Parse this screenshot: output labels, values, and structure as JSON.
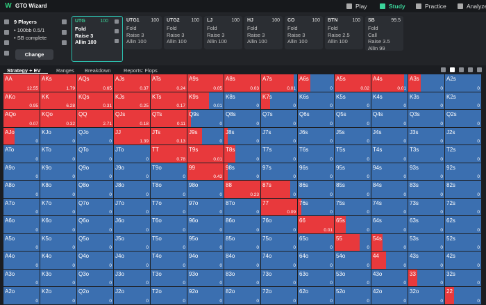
{
  "app": {
    "logo": "W",
    "title": "GTO Wizard",
    "nav": [
      "Play",
      "Study",
      "Practice",
      "Analyze"
    ]
  },
  "setup": {
    "players": "9 Players",
    "lines": [
      "• 100bb 0.5/1",
      "• SB complete"
    ],
    "button": "Change"
  },
  "positions": [
    {
      "name": "UTG",
      "stack": 100,
      "actions": [
        "Fold",
        "Raise 3",
        "Allin 100"
      ]
    },
    {
      "name": "UTG1",
      "stack": 100,
      "actions": [
        "Fold",
        "Raise 3",
        "Allin 100"
      ]
    },
    {
      "name": "UTG2",
      "stack": 100,
      "actions": [
        "Fold",
        "Raise 3",
        "Allin 100"
      ]
    },
    {
      "name": "LJ",
      "stack": 100,
      "actions": [
        "Fold",
        "Raise 3",
        "Allin 100"
      ]
    },
    {
      "name": "HJ",
      "stack": 100,
      "actions": [
        "Fold",
        "Raise 3",
        "Allin 100"
      ]
    },
    {
      "name": "CO",
      "stack": 100,
      "actions": [
        "Fold",
        "Raise 3",
        "Allin 100"
      ]
    },
    {
      "name": "BTN",
      "stack": 100,
      "actions": [
        "Fold",
        "Raise 2.5",
        "Allin 100"
      ]
    },
    {
      "name": "SB",
      "stack": 99.5,
      "actions": [
        "Fold",
        "Call",
        "Raise 3.5",
        "Allin 99"
      ]
    }
  ],
  "tabs": [
    "Strategy + EV",
    "Ranges",
    "Breakdown",
    "Reports: Flops"
  ],
  "grid": {
    "rows": [
      [
        [
          "AA",
          12.55,
          100
        ],
        [
          "AKs",
          1.79,
          100
        ],
        [
          "AQs",
          0.65,
          100
        ],
        [
          "AJs",
          0.37,
          100
        ],
        [
          "ATs",
          0.24,
          100
        ],
        [
          "A9s",
          0.05,
          100
        ],
        [
          "A8s",
          0.03,
          100
        ],
        [
          "A7s",
          0.01,
          90
        ],
        [
          "A6s",
          0,
          35
        ],
        [
          "A5s",
          0.02,
          100
        ],
        [
          "A4s",
          0.01,
          90
        ],
        [
          "A3s",
          0,
          35
        ],
        [
          "A2s",
          0,
          0
        ]
      ],
      [
        [
          "AKo",
          0.95,
          100
        ],
        [
          "KK",
          6.28,
          100
        ],
        [
          "KQs",
          0.31,
          100
        ],
        [
          "KJs",
          0.25,
          100
        ],
        [
          "KTs",
          0.17,
          100
        ],
        [
          "K9s",
          0.01,
          60
        ],
        [
          "K8s",
          0,
          0
        ],
        [
          "K7s",
          0,
          25
        ],
        [
          "K6s",
          0,
          0
        ],
        [
          "K5s",
          0,
          0
        ],
        [
          "K4s",
          0,
          0
        ],
        [
          "K3s",
          0,
          0
        ],
        [
          "K2s",
          0,
          0
        ]
      ],
      [
        [
          "AQo",
          0.07,
          100
        ],
        [
          "KQo",
          0.32,
          100
        ],
        [
          "QQ",
          2.71,
          100
        ],
        [
          "QJs",
          0.18,
          100
        ],
        [
          "QTs",
          0.11,
          100
        ],
        [
          "Q9s",
          0,
          10
        ],
        [
          "Q8s",
          0,
          0
        ],
        [
          "Q7s",
          0,
          0
        ],
        [
          "Q6s",
          0,
          0
        ],
        [
          "Q5s",
          0,
          0
        ],
        [
          "Q4s",
          0,
          0
        ],
        [
          "Q3s",
          0,
          0
        ],
        [
          "Q2s",
          0,
          0
        ]
      ],
      [
        [
          "AJo",
          0,
          30
        ],
        [
          "KJo",
          0,
          0
        ],
        [
          "QJo",
          0,
          0
        ],
        [
          "JJ",
          1.39,
          100
        ],
        [
          "JTs",
          0.13,
          100
        ],
        [
          "J9s",
          0,
          40
        ],
        [
          "J8s",
          0,
          10
        ],
        [
          "J7s",
          0,
          0
        ],
        [
          "J6s",
          0,
          0
        ],
        [
          "J5s",
          0,
          0
        ],
        [
          "J4s",
          0,
          0
        ],
        [
          "J3s",
          0,
          0
        ],
        [
          "J2s",
          0,
          0
        ]
      ],
      [
        [
          "ATo",
          0,
          0
        ],
        [
          "KTo",
          0,
          0
        ],
        [
          "QTo",
          0,
          0
        ],
        [
          "JTo",
          0,
          0
        ],
        [
          "TT",
          0.78,
          100
        ],
        [
          "T9s",
          0.01,
          100
        ],
        [
          "T8s",
          0,
          30
        ],
        [
          "T7s",
          0,
          0
        ],
        [
          "T6s",
          0,
          0
        ],
        [
          "T5s",
          0,
          0
        ],
        [
          "T4s",
          0,
          0
        ],
        [
          "T3s",
          0,
          0
        ],
        [
          "T2s",
          0,
          0
        ]
      ],
      [
        [
          "A9o",
          0,
          0
        ],
        [
          "K9o",
          0,
          0
        ],
        [
          "Q9o",
          0,
          0
        ],
        [
          "J9o",
          0,
          0
        ],
        [
          "T9o",
          0,
          0
        ],
        [
          "99",
          0.43,
          100
        ],
        [
          "98s",
          0,
          10
        ],
        [
          "97s",
          0,
          0
        ],
        [
          "96s",
          0,
          0
        ],
        [
          "95s",
          0,
          0
        ],
        [
          "94s",
          0,
          0
        ],
        [
          "93s",
          0,
          0
        ],
        [
          "92s",
          0,
          0
        ]
      ],
      [
        [
          "A8o",
          0,
          0
        ],
        [
          "K8o",
          0,
          0
        ],
        [
          "Q8o",
          0,
          0
        ],
        [
          "J8o",
          0,
          0
        ],
        [
          "T8o",
          0,
          0
        ],
        [
          "98o",
          0,
          0
        ],
        [
          "88",
          0.23,
          100
        ],
        [
          "87s",
          0,
          80
        ],
        [
          "86s",
          0,
          0
        ],
        [
          "85s",
          0,
          0
        ],
        [
          "84s",
          0,
          0
        ],
        [
          "83s",
          0,
          0
        ],
        [
          "82s",
          0,
          0
        ]
      ],
      [
        [
          "A7o",
          0,
          0
        ],
        [
          "K7o",
          0,
          0
        ],
        [
          "Q7o",
          0,
          0
        ],
        [
          "J7o",
          0,
          0
        ],
        [
          "T7o",
          0,
          0
        ],
        [
          "97o",
          0,
          0
        ],
        [
          "87o",
          0,
          0
        ],
        [
          "77",
          0.09,
          100
        ],
        [
          "76s",
          0,
          10
        ],
        [
          "75s",
          0,
          0
        ],
        [
          "74s",
          0,
          0
        ],
        [
          "73s",
          0,
          0
        ],
        [
          "72s",
          0,
          0
        ]
      ],
      [
        [
          "A6o",
          0,
          0
        ],
        [
          "K6o",
          0,
          0
        ],
        [
          "Q6o",
          0,
          0
        ],
        [
          "J6o",
          0,
          0
        ],
        [
          "T6o",
          0,
          0
        ],
        [
          "96o",
          0,
          0
        ],
        [
          "86o",
          0,
          0
        ],
        [
          "76o",
          0,
          0
        ],
        [
          "66",
          0.01,
          100
        ],
        [
          "65s",
          0,
          30
        ],
        [
          "64s",
          0,
          0
        ],
        [
          "63s",
          0,
          0
        ],
        [
          "62s",
          0,
          0
        ]
      ],
      [
        [
          "A5o",
          0,
          0
        ],
        [
          "K5o",
          0,
          0
        ],
        [
          "Q5o",
          0,
          0
        ],
        [
          "J5o",
          0,
          0
        ],
        [
          "T5o",
          0,
          0
        ],
        [
          "95o",
          0,
          0
        ],
        [
          "85o",
          0,
          0
        ],
        [
          "75o",
          0,
          0
        ],
        [
          "65o",
          0,
          0
        ],
        [
          "55",
          0,
          70
        ],
        [
          "54s",
          0,
          30
        ],
        [
          "53s",
          0,
          0
        ],
        [
          "52s",
          0,
          0
        ]
      ],
      [
        [
          "A4o",
          0,
          0
        ],
        [
          "K4o",
          0,
          0
        ],
        [
          "Q4o",
          0,
          0
        ],
        [
          "J4o",
          0,
          0
        ],
        [
          "T4o",
          0,
          0
        ],
        [
          "94o",
          0,
          0
        ],
        [
          "84o",
          0,
          0
        ],
        [
          "74o",
          0,
          0
        ],
        [
          "64o",
          0,
          0
        ],
        [
          "54o",
          0,
          0
        ],
        [
          "44",
          0,
          40
        ],
        [
          "43s",
          0,
          0
        ],
        [
          "42s",
          0,
          0
        ]
      ],
      [
        [
          "A3o",
          0,
          0
        ],
        [
          "K3o",
          0,
          0
        ],
        [
          "Q3o",
          0,
          0
        ],
        [
          "J3o",
          0,
          0
        ],
        [
          "T3o",
          0,
          0
        ],
        [
          "93o",
          0,
          0
        ],
        [
          "83o",
          0,
          0
        ],
        [
          "73o",
          0,
          0
        ],
        [
          "63o",
          0,
          0
        ],
        [
          "53o",
          0,
          0
        ],
        [
          "43o",
          0,
          0
        ],
        [
          "33",
          0,
          25
        ],
        [
          "32s",
          0,
          0
        ]
      ],
      [
        [
          "A2o",
          0,
          0
        ],
        [
          "K2o",
          0,
          0
        ],
        [
          "Q2o",
          0,
          0
        ],
        [
          "J2o",
          0,
          0
        ],
        [
          "T2o",
          0,
          0
        ],
        [
          "92o",
          0,
          0
        ],
        [
          "82o",
          0,
          0
        ],
        [
          "72o",
          0,
          0
        ],
        [
          "62o",
          0,
          0
        ],
        [
          "52o",
          0,
          0
        ],
        [
          "42o",
          0,
          0
        ],
        [
          "32o",
          0,
          0
        ],
        [
          "22",
          0,
          25
        ]
      ]
    ]
  }
}
